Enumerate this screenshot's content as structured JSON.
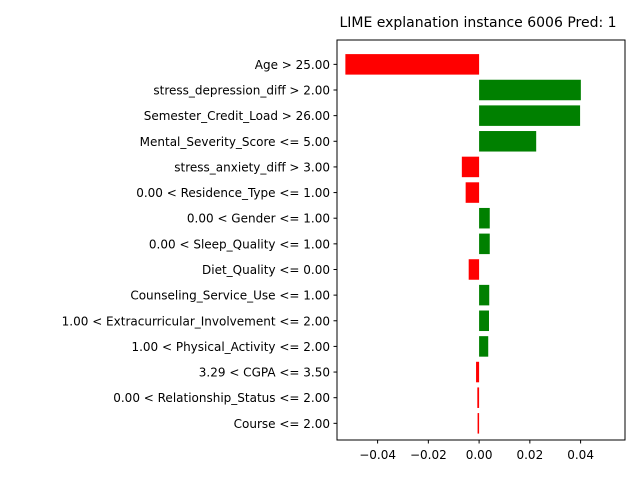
{
  "chart_data": {
    "type": "bar",
    "orientation": "horizontal",
    "title": "LIME explanation instance 6006 Pred: 1",
    "xlabel": "",
    "ylabel": "",
    "xlim": [
      -0.056,
      0.0575
    ],
    "xticks": [
      -0.04,
      -0.02,
      0.0,
      0.02,
      0.04
    ],
    "xtick_labels": [
      "−0.04",
      "−0.02",
      "0.00",
      "0.02",
      "0.04"
    ],
    "grid": false,
    "legend": "none",
    "colors": {
      "positive": "#008000",
      "negative": "#ff0000"
    },
    "categories": [
      "Age > 25.00",
      "stress_depression_diff > 2.00",
      "Semester_Credit_Load > 26.00",
      "Mental_Severity_Score <= 5.00",
      "stress_anxiety_diff > 3.00",
      "0.00 < Residence_Type <= 1.00",
      "0.00 < Gender <= 1.00",
      "0.00 < Sleep_Quality <= 1.00",
      "Diet_Quality <= 0.00",
      "Counseling_Service_Use <= 1.00",
      "1.00 < Extracurricular_Involvement <= 2.00",
      "1.00 < Physical_Activity <= 2.00",
      "3.29 < CGPA <= 3.50",
      "0.00 < Relationship_Status <= 2.00",
      "Course <= 2.00"
    ],
    "values": [
      -0.0527,
      0.0401,
      0.0398,
      0.0225,
      -0.0068,
      -0.0053,
      0.0042,
      0.0042,
      -0.0041,
      0.004,
      0.0039,
      0.0036,
      -0.0012,
      -0.0007,
      -0.0006
    ]
  }
}
